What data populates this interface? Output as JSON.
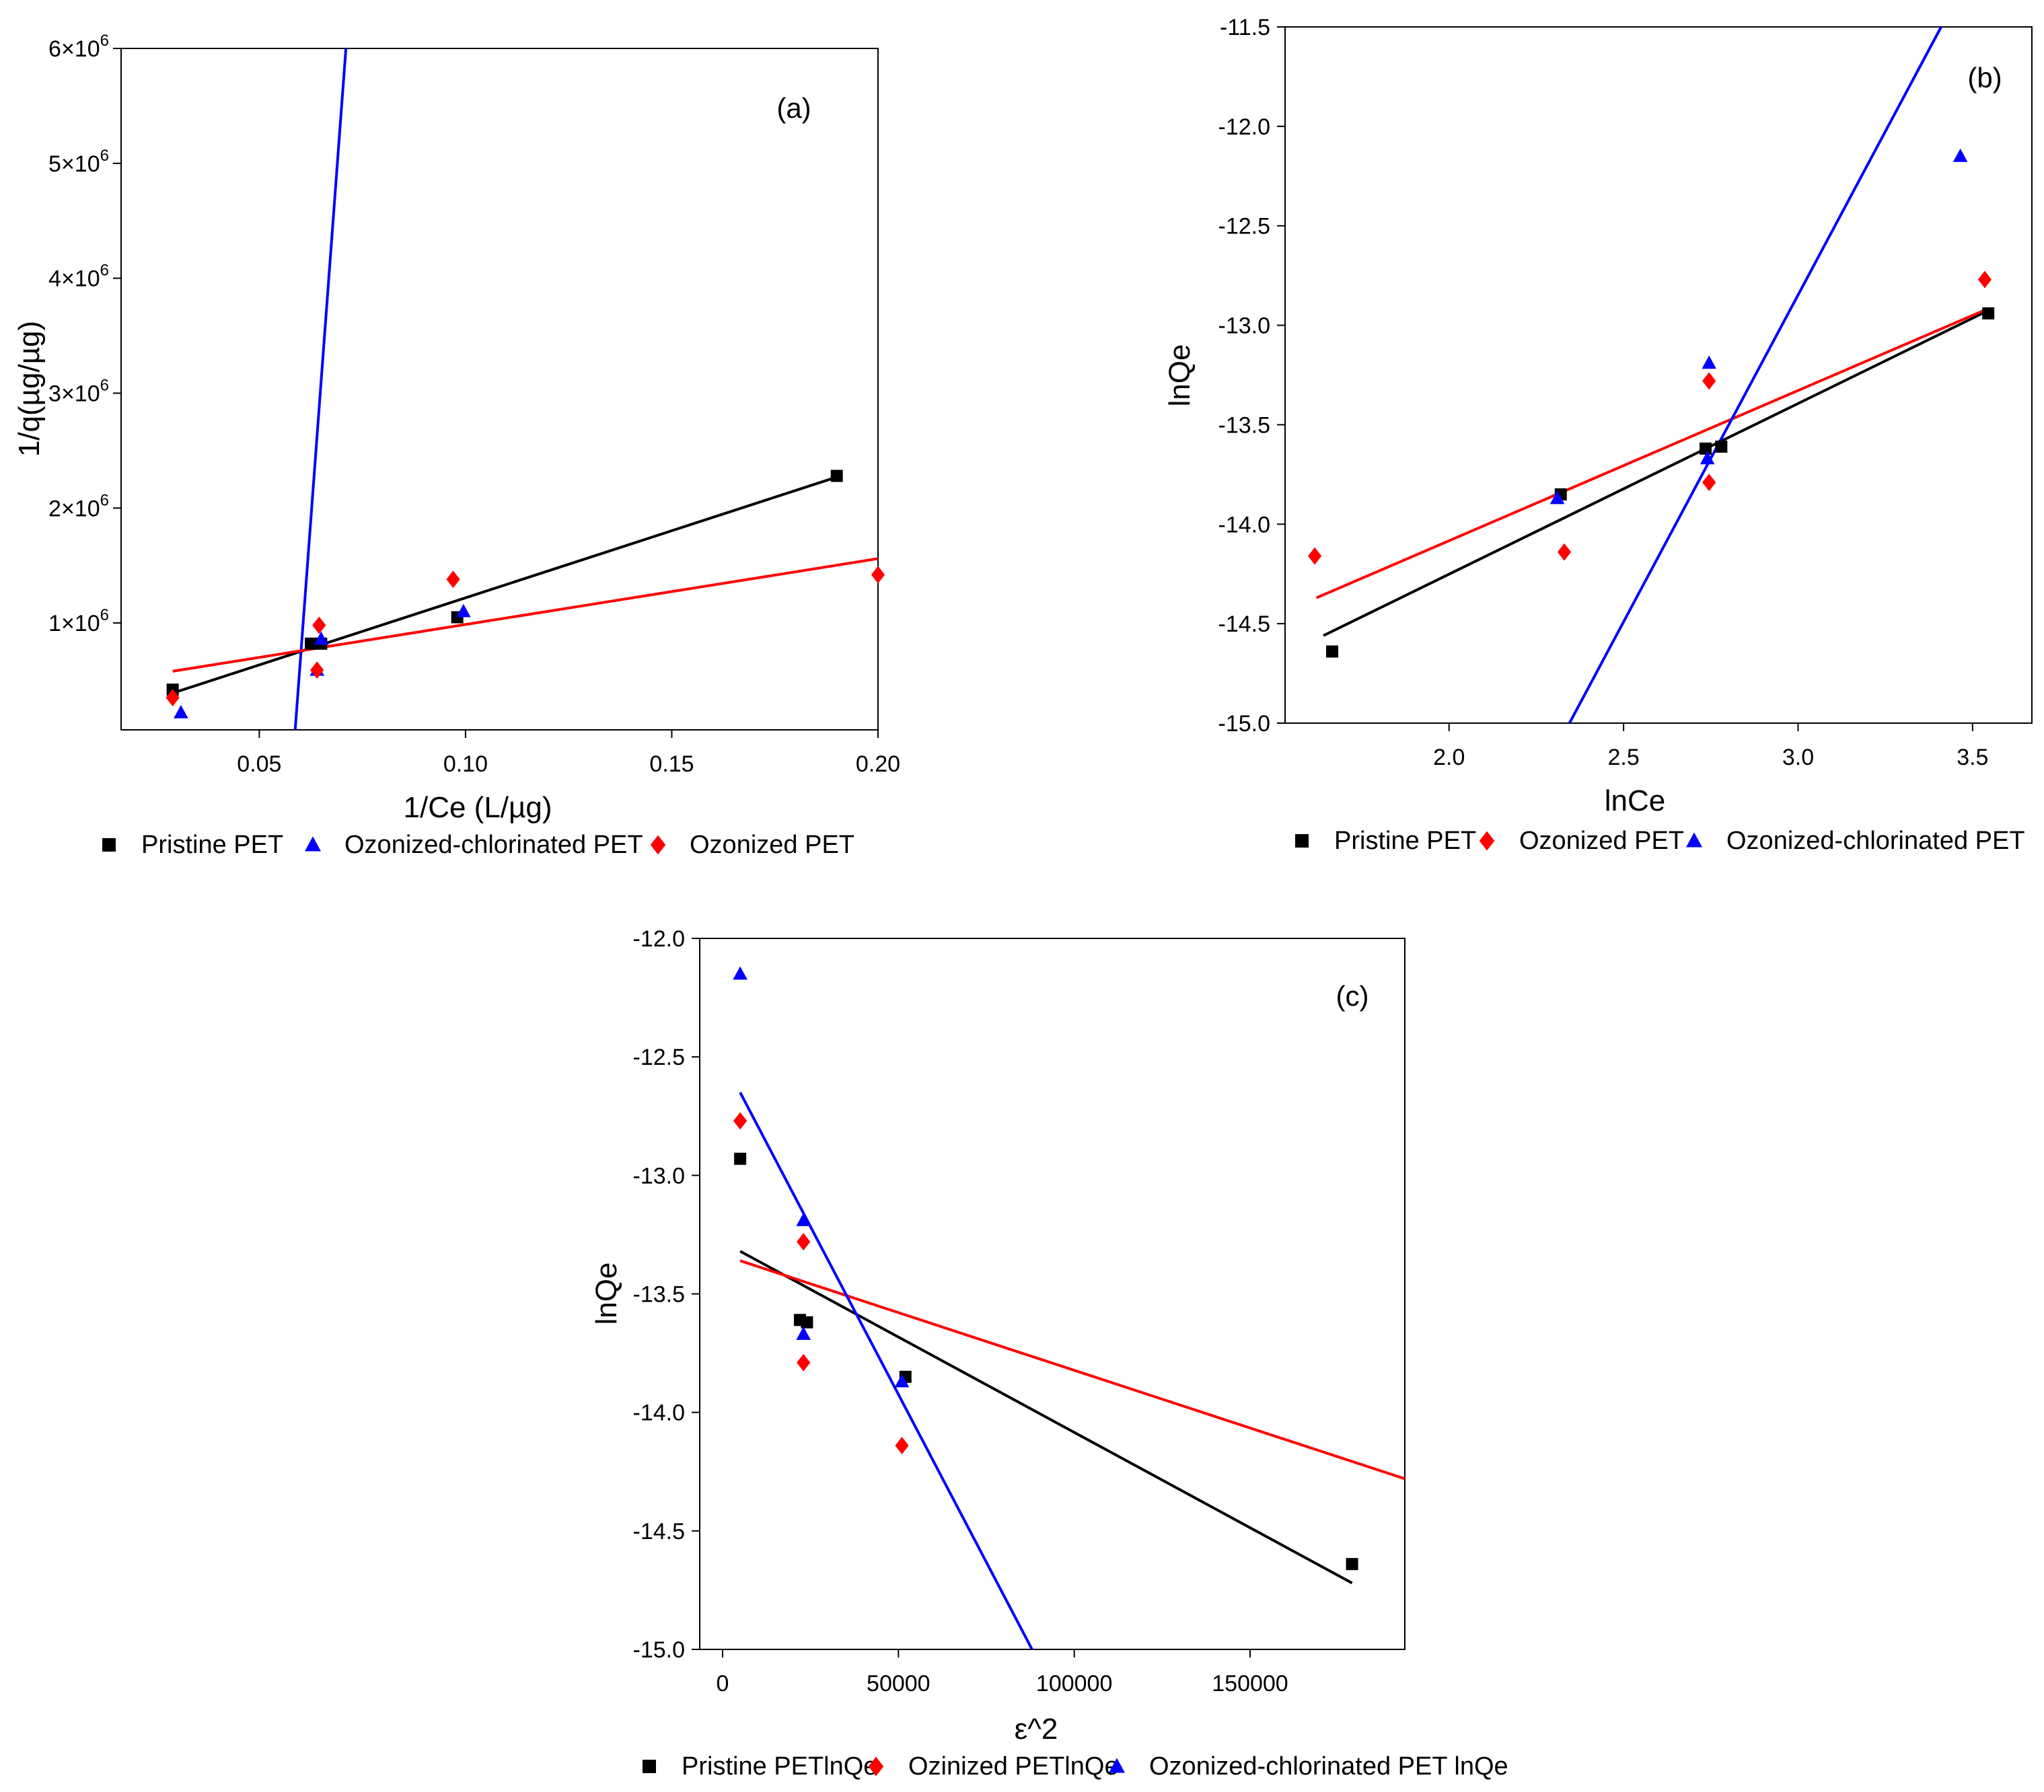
{
  "colors": {
    "black": "#000000",
    "red": "#ff0000",
    "blue": "#0000ff"
  },
  "chart_data": [
    {
      "type": "scatter",
      "panel_label": "(a)",
      "xlabel": "1/Ce (L/µg)",
      "ylabel": "1/q(µg/µg)",
      "xlim": [
        0.0165,
        0.2
      ],
      "ylim": [
        70000,
        6000000
      ],
      "xticks": [
        0.05,
        0.1,
        0.15,
        0.2
      ],
      "xtick_labels": [
        "0.05",
        "0.10",
        "0.15",
        "0.20"
      ],
      "yticks": [
        1000000,
        2000000,
        3000000,
        4000000,
        5000000,
        6000000
      ],
      "ytick_labels": [
        {
          "base": "1×10",
          "exp": "6"
        },
        {
          "base": "2×10",
          "exp": "6"
        },
        {
          "base": "3×10",
          "exp": "6"
        },
        {
          "base": "4×10",
          "exp": "6"
        },
        {
          "base": "5×10",
          "exp": "6"
        },
        {
          "base": "6×10",
          "exp": "6"
        }
      ],
      "series": [
        {
          "name": "Pristine  PET",
          "color": "#000000",
          "marker": "square",
          "points": [
            [
              0.029,
              420000
            ],
            [
              0.0625,
              820000
            ],
            [
              0.065,
              820000
            ],
            [
              0.098,
              1050000
            ],
            [
              0.19,
              2280000
            ]
          ],
          "fit": [
            [
              0.029,
              390000
            ],
            [
              0.19,
              2270000
            ]
          ]
        },
        {
          "name": "Ozonized-chlorinated PET",
          "color": "#0000ff",
          "marker": "triangle",
          "points": [
            [
              0.031,
              220000
            ],
            [
              0.064,
              590000
            ],
            [
              0.065,
              860000
            ],
            [
              0.0995,
              1100000
            ]
          ],
          "fit": [
            [
              0.0587,
              70000
            ],
            [
              0.071,
              6000000
            ]
          ]
        },
        {
          "name": "Ozonized PET",
          "color": "#ff0000",
          "marker": "diamond",
          "points": [
            [
              0.029,
              350000
            ],
            [
              0.064,
              590000
            ],
            [
              0.0645,
              980000
            ],
            [
              0.097,
              1380000
            ],
            [
              0.2,
              1420000
            ]
          ],
          "fit": [
            [
              0.029,
              580000
            ],
            [
              0.2,
              1560000
            ]
          ]
        }
      ],
      "legend_order": [
        0,
        1,
        2
      ]
    },
    {
      "type": "scatter",
      "panel_label": "(b)",
      "xlabel": "lnCe",
      "ylabel": "lnQe",
      "xlim": [
        1.53,
        3.67
      ],
      "ylim": [
        -15.0,
        -11.5
      ],
      "xticks": [
        2.0,
        2.5,
        3.0,
        3.5
      ],
      "xtick_labels": [
        "2.0",
        "2.5",
        "3.0",
        "3.5"
      ],
      "yticks": [
        -15.0,
        -14.5,
        -14.0,
        -13.5,
        -13.0,
        -12.5,
        -12.0,
        -11.5
      ],
      "ytick_labels": [
        "-15.0",
        "-14.5",
        "-14.0",
        "-13.5",
        "-13.0",
        "-12.5",
        "-12.0",
        "-11.5"
      ],
      "series": [
        {
          "name": "Pristine PET",
          "color": "#000000",
          "marker": "square",
          "points": [
            [
              1.665,
              -14.64
            ],
            [
              2.32,
              -13.85
            ],
            [
              2.735,
              -13.62
            ],
            [
              2.78,
              -13.61
            ],
            [
              3.545,
              -12.94
            ]
          ],
          "fit": [
            [
              1.64,
              -14.56
            ],
            [
              3.54,
              -12.93
            ]
          ]
        },
        {
          "name": "Ozonized PET",
          "color": "#ff0000",
          "marker": "diamond",
          "points": [
            [
              1.615,
              -14.16
            ],
            [
              2.33,
              -14.14
            ],
            [
              2.745,
              -13.28
            ],
            [
              2.745,
              -13.79
            ],
            [
              3.535,
              -12.77
            ]
          ],
          "fit": [
            [
              1.62,
              -14.37
            ],
            [
              3.54,
              -12.92
            ]
          ]
        },
        {
          "name": "Ozonized-chlorinated PET",
          "color": "#0000ff",
          "marker": "triangle",
          "points": [
            [
              2.31,
              -13.87
            ],
            [
              2.74,
              -13.67
            ],
            [
              2.745,
              -13.19
            ],
            [
              3.465,
              -12.15
            ]
          ],
          "fit": [
            [
              2.345,
              -15.0
            ],
            [
              3.41,
              -11.5
            ]
          ]
        }
      ],
      "legend_order": [
        0,
        1,
        2
      ]
    },
    {
      "type": "scatter",
      "panel_label": "(c)",
      "xlabel": "ε^2",
      "ylabel": "lnQe",
      "xlim": [
        -6500,
        194000
      ],
      "ylim": [
        -15.0,
        -12.0
      ],
      "xticks": [
        0,
        50000,
        100000,
        150000
      ],
      "xtick_labels": [
        "0",
        "50000",
        "100000",
        "150000"
      ],
      "yticks": [
        -15.0,
        -14.5,
        -14.0,
        -13.5,
        -13.0,
        -12.5,
        -12.0
      ],
      "ytick_labels": [
        "-15.0",
        "-14.5",
        "-14.0",
        "-13.5",
        "-13.0",
        "-12.5",
        "-12.0"
      ],
      "series": [
        {
          "name": "Pristine PETlnQe",
          "color": "#000000",
          "marker": "square",
          "points": [
            [
              5000,
              -12.93
            ],
            [
              22000,
              -13.61
            ],
            [
              24000,
              -13.62
            ],
            [
              52000,
              -13.85
            ],
            [
              179000,
              -14.64
            ]
          ],
          "fit": [
            [
              5000,
              -13.32
            ],
            [
              179000,
              -14.72
            ]
          ]
        },
        {
          "name": "Ozinized PETlnQe",
          "color": "#ff0000",
          "marker": "diamond",
          "points": [
            [
              5000,
              -12.77
            ],
            [
              23000,
              -13.28
            ],
            [
              23000,
              -13.79
            ],
            [
              51000,
              -14.14
            ]
          ],
          "fit": [
            [
              5000,
              -13.36
            ],
            [
              194000,
              -14.28
            ]
          ]
        },
        {
          "name": "Ozonized-chlorinated PET lnQe",
          "color": "#0000ff",
          "marker": "triangle",
          "points": [
            [
              5000,
              -12.15
            ],
            [
              23000,
              -13.19
            ],
            [
              23000,
              -13.67
            ],
            [
              51000,
              -13.87
            ]
          ],
          "fit": [
            [
              5000,
              -12.65
            ],
            [
              88000,
              -15.0
            ]
          ]
        }
      ],
      "legend_order": [
        0,
        1,
        2
      ]
    }
  ]
}
